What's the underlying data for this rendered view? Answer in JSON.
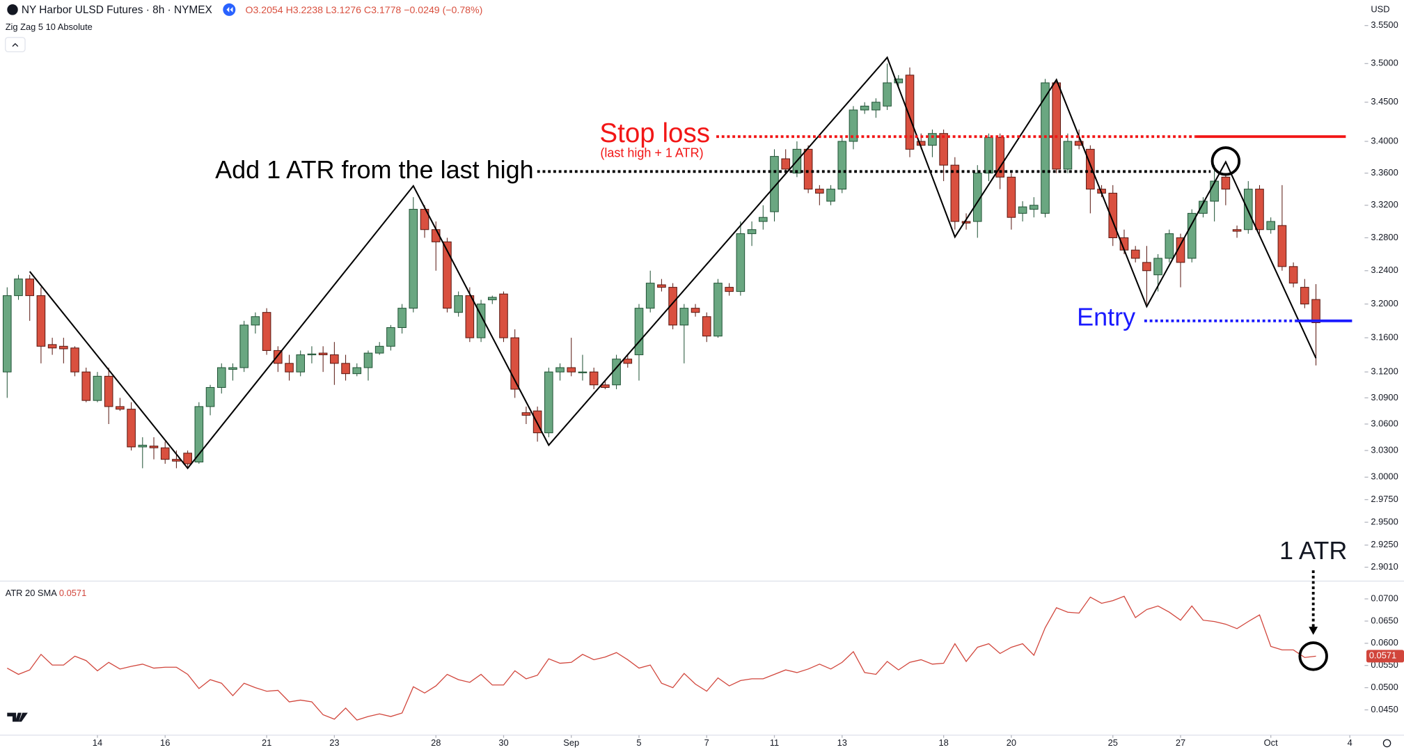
{
  "header": {
    "symbol": "NY Harbor ULSD Futures · 8h · NYMEX",
    "ohlc": "O3.2054 H3.2238 L3.1276 C3.1778 −0.0249 (−0.78%)",
    "currency": "USD"
  },
  "chart_data": [
    {
      "type": "candlestick",
      "indicator": "Zig Zag 5 10 Absolute",
      "log": true,
      "up_color": "#6aa781",
      "down_color": "#d9503f",
      "ylim": [
        2.886,
        3.583
      ],
      "yticks": [
        {
          "value": 3.55,
          "label": "3.5500"
        },
        {
          "value": 3.5,
          "label": "3.5000"
        },
        {
          "value": 3.45,
          "label": "3.4500"
        },
        {
          "value": 3.4,
          "label": "3.4000"
        },
        {
          "value": 3.36,
          "label": "3.3600"
        },
        {
          "value": 3.32,
          "label": "3.3200"
        },
        {
          "value": 3.28,
          "label": "3.2800"
        },
        {
          "value": 3.24,
          "label": "3.2400"
        },
        {
          "value": 3.2,
          "label": "3.2000"
        },
        {
          "value": 3.16,
          "label": "3.1600"
        },
        {
          "value": 3.12,
          "label": "3.1200"
        },
        {
          "value": 3.09,
          "label": "3.0900"
        },
        {
          "value": 3.06,
          "label": "3.0600"
        },
        {
          "value": 3.03,
          "label": "3.0300"
        },
        {
          "value": 3,
          "label": "3.0000"
        },
        {
          "value": 2.975,
          "label": "2.9750"
        },
        {
          "value": 2.95,
          "label": "2.9500"
        },
        {
          "value": 2.925,
          "label": "2.9250"
        },
        {
          "value": 2.901,
          "label": "2.9010"
        }
      ],
      "xlim": [
        -0.635,
        119.2
      ],
      "xticks": [
        {
          "value": 8,
          "label": "14"
        },
        {
          "value": 14,
          "label": "16"
        },
        {
          "value": 23,
          "label": "21"
        },
        {
          "value": 29,
          "label": "23"
        },
        {
          "value": 38,
          "label": "28"
        },
        {
          "value": 44,
          "label": "30"
        },
        {
          "value": 50,
          "label": "Sep"
        },
        {
          "value": 56,
          "label": "5"
        },
        {
          "value": 62,
          "label": "7"
        },
        {
          "value": 68,
          "label": "11"
        },
        {
          "value": 74,
          "label": "13"
        },
        {
          "value": 83,
          "label": "18"
        },
        {
          "value": 89,
          "label": "20"
        },
        {
          "value": 98,
          "label": "25"
        },
        {
          "value": 104,
          "label": "27"
        },
        {
          "value": 112,
          "label": "Oct"
        },
        {
          "value": 119,
          "label": "4"
        }
      ],
      "candles": [
        [
          3.12,
          3.22,
          3.09,
          3.21
        ],
        [
          3.21,
          3.235,
          3.205,
          3.23
        ],
        [
          3.23,
          3.235,
          3.18,
          3.21
        ],
        [
          3.21,
          3.22,
          3.13,
          3.15
        ],
        [
          3.152,
          3.16,
          3.14,
          3.148
        ],
        [
          3.15,
          3.16,
          3.13,
          3.147
        ],
        [
          3.148,
          3.15,
          3.115,
          3.12
        ],
        [
          3.12,
          3.125,
          3.085,
          3.087
        ],
        [
          3.087,
          3.12,
          3.085,
          3.115
        ],
        [
          3.115,
          3.125,
          3.06,
          3.08
        ],
        [
          3.08,
          3.09,
          3.075,
          3.077
        ],
        [
          3.077,
          3.085,
          3.03,
          3.034
        ],
        [
          3.034,
          3.045,
          3.01,
          3.036
        ],
        [
          3.035,
          3.045,
          3.02,
          3.033
        ],
        [
          3.033,
          3.04,
          3.015,
          3.02
        ],
        [
          3.02,
          3.03,
          3.01,
          3.018
        ],
        [
          3.027,
          3.03,
          3.01,
          3.015
        ],
        [
          3.017,
          3.085,
          3.015,
          3.08
        ],
        [
          3.08,
          3.105,
          3.07,
          3.102
        ],
        [
          3.102,
          3.13,
          3.095,
          3.125
        ],
        [
          3.123,
          3.13,
          3.11,
          3.125
        ],
        [
          3.125,
          3.18,
          3.12,
          3.175
        ],
        [
          3.175,
          3.19,
          3.165,
          3.185
        ],
        [
          3.19,
          3.195,
          3.14,
          3.145
        ],
        [
          3.145,
          3.15,
          3.12,
          3.13
        ],
        [
          3.13,
          3.14,
          3.11,
          3.12
        ],
        [
          3.12,
          3.145,
          3.115,
          3.14
        ],
        [
          3.14,
          3.15,
          3.13,
          3.141
        ],
        [
          3.142,
          3.15,
          3.12,
          3.14
        ],
        [
          3.14,
          3.155,
          3.105,
          3.13
        ],
        [
          3.13,
          3.14,
          3.11,
          3.118
        ],
        [
          3.118,
          3.13,
          3.115,
          3.125
        ],
        [
          3.125,
          3.145,
          3.11,
          3.142
        ],
        [
          3.142,
          3.155,
          3.14,
          3.15
        ],
        [
          3.15,
          3.175,
          3.145,
          3.172
        ],
        [
          3.172,
          3.2,
          3.165,
          3.195
        ],
        [
          3.195,
          3.33,
          3.19,
          3.315
        ],
        [
          3.315,
          3.32,
          3.28,
          3.29
        ],
        [
          3.29,
          3.3,
          3.24,
          3.275
        ],
        [
          3.275,
          3.28,
          3.19,
          3.195
        ],
        [
          3.19,
          3.215,
          3.185,
          3.21
        ],
        [
          3.21,
          3.22,
          3.155,
          3.16
        ],
        [
          3.16,
          3.205,
          3.155,
          3.2
        ],
        [
          3.205,
          3.21,
          3.2,
          3.208
        ],
        [
          3.212,
          3.215,
          3.155,
          3.16
        ],
        [
          3.16,
          3.17,
          3.09,
          3.1
        ],
        [
          3.073,
          3.08,
          3.06,
          3.07
        ],
        [
          3.075,
          3.08,
          3.04,
          3.05
        ],
        [
          3.05,
          3.125,
          3.045,
          3.12
        ],
        [
          3.12,
          3.13,
          3.11,
          3.125
        ],
        [
          3.125,
          3.16,
          3.115,
          3.12
        ],
        [
          3.12,
          3.14,
          3.11,
          3.12
        ],
        [
          3.12,
          3.125,
          3.1,
          3.105
        ],
        [
          3.105,
          3.11,
          3.1,
          3.102
        ],
        [
          3.105,
          3.14,
          3.1,
          3.135
        ],
        [
          3.135,
          3.14,
          3.125,
          3.13
        ],
        [
          3.14,
          3.2,
          3.11,
          3.195
        ],
        [
          3.195,
          3.24,
          3.19,
          3.225
        ],
        [
          3.223,
          3.23,
          3.215,
          3.22
        ],
        [
          3.22,
          3.225,
          3.17,
          3.175
        ],
        [
          3.175,
          3.2,
          3.13,
          3.195
        ],
        [
          3.195,
          3.2,
          3.185,
          3.19
        ],
        [
          3.185,
          3.19,
          3.155,
          3.162
        ],
        [
          3.162,
          3.23,
          3.16,
          3.225
        ],
        [
          3.22,
          3.225,
          3.21,
          3.215
        ],
        [
          3.215,
          3.3,
          3.21,
          3.285
        ],
        [
          3.285,
          3.3,
          3.27,
          3.29
        ],
        [
          3.3,
          3.32,
          3.29,
          3.305
        ],
        [
          3.312,
          3.39,
          3.3,
          3.381
        ],
        [
          3.378,
          3.39,
          3.36,
          3.365
        ],
        [
          3.36,
          3.4,
          3.355,
          3.39
        ],
        [
          3.39,
          3.395,
          3.335,
          3.34
        ],
        [
          3.34,
          3.345,
          3.32,
          3.335
        ],
        [
          3.325,
          3.345,
          3.32,
          3.34
        ],
        [
          3.34,
          3.405,
          3.335,
          3.4
        ],
        [
          3.4,
          3.445,
          3.39,
          3.44
        ],
        [
          3.44,
          3.45,
          3.435,
          3.445
        ],
        [
          3.44,
          3.455,
          3.43,
          3.45
        ],
        [
          3.445,
          3.5,
          3.44,
          3.475
        ],
        [
          3.475,
          3.485,
          3.47,
          3.48
        ],
        [
          3.485,
          3.495,
          3.38,
          3.39
        ],
        [
          3.4,
          3.41,
          3.39,
          3.395
        ],
        [
          3.395,
          3.415,
          3.38,
          3.41
        ],
        [
          3.41,
          3.415,
          3.35,
          3.37
        ],
        [
          3.37,
          3.38,
          3.29,
          3.3
        ],
        [
          3.3,
          3.31,
          3.29,
          3.298
        ],
        [
          3.3,
          3.37,
          3.28,
          3.36
        ],
        [
          3.36,
          3.41,
          3.35,
          3.405
        ],
        [
          3.405,
          3.41,
          3.34,
          3.355
        ],
        [
          3.355,
          3.36,
          3.29,
          3.305
        ],
        [
          3.31,
          3.325,
          3.3,
          3.318
        ],
        [
          3.315,
          3.33,
          3.305,
          3.32
        ],
        [
          3.31,
          3.48,
          3.305,
          3.475
        ],
        [
          3.475,
          3.48,
          3.36,
          3.365
        ],
        [
          3.365,
          3.41,
          3.36,
          3.4
        ],
        [
          3.4,
          3.415,
          3.39,
          3.395
        ],
        [
          3.39,
          3.395,
          3.31,
          3.34
        ],
        [
          3.34,
          3.345,
          3.33,
          3.335
        ],
        [
          3.335,
          3.345,
          3.27,
          3.28
        ],
        [
          3.28,
          3.29,
          3.26,
          3.265
        ],
        [
          3.265,
          3.27,
          3.25,
          3.255
        ],
        [
          3.25,
          3.27,
          3.2,
          3.24
        ],
        [
          3.235,
          3.26,
          3.215,
          3.255
        ],
        [
          3.255,
          3.29,
          3.25,
          3.285
        ],
        [
          3.28,
          3.285,
          3.22,
          3.25
        ],
        [
          3.255,
          3.315,
          3.25,
          3.31
        ],
        [
          3.31,
          3.33,
          3.305,
          3.325
        ],
        [
          3.325,
          3.37,
          3.3,
          3.35
        ],
        [
          3.355,
          3.36,
          3.32,
          3.34
        ],
        [
          3.29,
          3.295,
          3.28,
          3.288
        ],
        [
          3.29,
          3.35,
          3.285,
          3.34
        ],
        [
          3.34,
          3.345,
          3.285,
          3.29
        ],
        [
          3.29,
          3.305,
          3.285,
          3.3
        ],
        [
          3.295,
          3.345,
          3.24,
          3.245
        ],
        [
          3.245,
          3.25,
          3.22,
          3.225
        ],
        [
          3.22,
          3.23,
          3.195,
          3.2
        ],
        [
          3.2054,
          3.2238,
          3.1276,
          3.1778
        ]
      ],
      "zigzag": {
        "x": [
          2,
          16,
          36,
          48,
          78,
          84,
          93,
          101,
          108,
          116
        ],
        "values": [
          3.239,
          3.01,
          3.344,
          3.036,
          3.508,
          3.281,
          3.479,
          3.197,
          3.374,
          3.136
        ],
        "color": "#000000"
      },
      "stop_loss": {
        "label": "Stop loss",
        "note": "(last high + 1 ATR)",
        "value": 3.406,
        "color": "#f21616"
      },
      "last_high": {
        "label": "Add 1 ATR from the last high",
        "value": 3.362,
        "color": "#000000"
      },
      "entry": {
        "label": "Entry",
        "value": 3.18,
        "color": "#1a1aff"
      }
    },
    {
      "type": "line",
      "title": "ATR 20 SMA",
      "annotation": "1 ATR",
      "color": "#d1453b",
      "ylim": [
        0.0393,
        0.0736
      ],
      "yticks": [
        {
          "value": 0.07,
          "label": "0.0700"
        },
        {
          "value": 0.065,
          "label": "0.0650"
        },
        {
          "value": 0.06,
          "label": "0.0600"
        },
        {
          "value": 0.055,
          "label": "0.0550"
        },
        {
          "value": 0.05,
          "label": "0.0500"
        },
        {
          "value": 0.045,
          "label": "0.0450"
        }
      ],
      "values": [
        0.0544,
        0.053,
        0.054,
        0.0575,
        0.0551,
        0.0551,
        0.0571,
        0.0561,
        0.0538,
        0.0557,
        0.0542,
        0.0548,
        0.0553,
        0.0544,
        0.0546,
        0.0546,
        0.053,
        0.0498,
        0.0518,
        0.051,
        0.0482,
        0.051,
        0.05,
        0.0492,
        0.0494,
        0.0468,
        0.0472,
        0.0468,
        0.0439,
        0.0429,
        0.0454,
        0.0427,
        0.0435,
        0.0441,
        0.0435,
        0.0443,
        0.0502,
        0.0488,
        0.0504,
        0.053,
        0.0518,
        0.0512,
        0.053,
        0.0506,
        0.0506,
        0.0538,
        0.052,
        0.0528,
        0.0565,
        0.0555,
        0.0557,
        0.0575,
        0.0563,
        0.0569,
        0.0579,
        0.0563,
        0.0544,
        0.0551,
        0.051,
        0.05,
        0.0532,
        0.0508,
        0.0492,
        0.0522,
        0.0504,
        0.0516,
        0.052,
        0.052,
        0.053,
        0.054,
        0.0534,
        0.0542,
        0.0553,
        0.0542,
        0.0557,
        0.0581,
        0.0534,
        0.053,
        0.0559,
        0.054,
        0.0557,
        0.0563,
        0.0553,
        0.0555,
        0.0599,
        0.0559,
        0.0591,
        0.0599,
        0.0577,
        0.0591,
        0.0599,
        0.0573,
        0.0635,
        0.068,
        0.067,
        0.0668,
        0.0704,
        0.069,
        0.0696,
        0.0706,
        0.0658,
        0.0676,
        0.0684,
        0.067,
        0.0652,
        0.0684,
        0.0652,
        0.0649,
        0.0643,
        0.0633,
        0.0649,
        0.0664,
        0.0593,
        0.0585,
        0.0585,
        0.0568,
        0.0571
      ]
    }
  ]
}
